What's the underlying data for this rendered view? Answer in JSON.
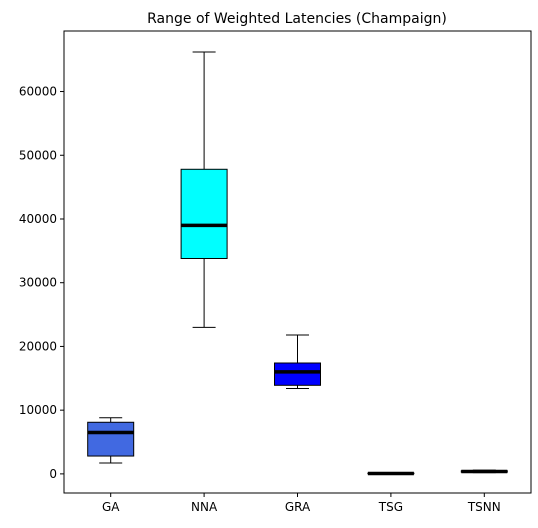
{
  "chart_data": {
    "type": "box",
    "title": "Range of Weighted Latencies (Champaign)",
    "xlabel": "",
    "ylabel": "",
    "ylim": [
      -3000,
      69500
    ],
    "yticks": [
      0,
      10000,
      20000,
      30000,
      40000,
      50000,
      60000
    ],
    "ytick_labels": [
      "0",
      "10000",
      "20000",
      "30000",
      "40000",
      "50000",
      "60000"
    ],
    "categories": [
      "GA",
      "NNA",
      "GRA",
      "TSG",
      "TSNN"
    ],
    "boxes": [
      {
        "name": "GA",
        "color": "#4169e1",
        "whisker_low": 1700,
        "q1": 2800,
        "median": 6500,
        "q3": 8100,
        "whisker_high": 8800
      },
      {
        "name": "NNA",
        "color": "#00ffff",
        "whisker_low": 23000,
        "q1": 33800,
        "median": 39000,
        "q3": 47800,
        "whisker_high": 66200
      },
      {
        "name": "GRA",
        "color": "#0000ff",
        "whisker_low": 13400,
        "q1": 13900,
        "median": 16000,
        "q3": 17400,
        "whisker_high": 21800
      },
      {
        "name": "TSG",
        "color": "#008000",
        "whisker_low": 20,
        "q1": 30,
        "median": 60,
        "q3": 110,
        "whisker_high": 150
      },
      {
        "name": "TSNN",
        "color": "#ff0000",
        "whisker_low": 200,
        "q1": 280,
        "median": 380,
        "q3": 480,
        "whisker_high": 580
      }
    ],
    "median_color": "#000000"
  }
}
